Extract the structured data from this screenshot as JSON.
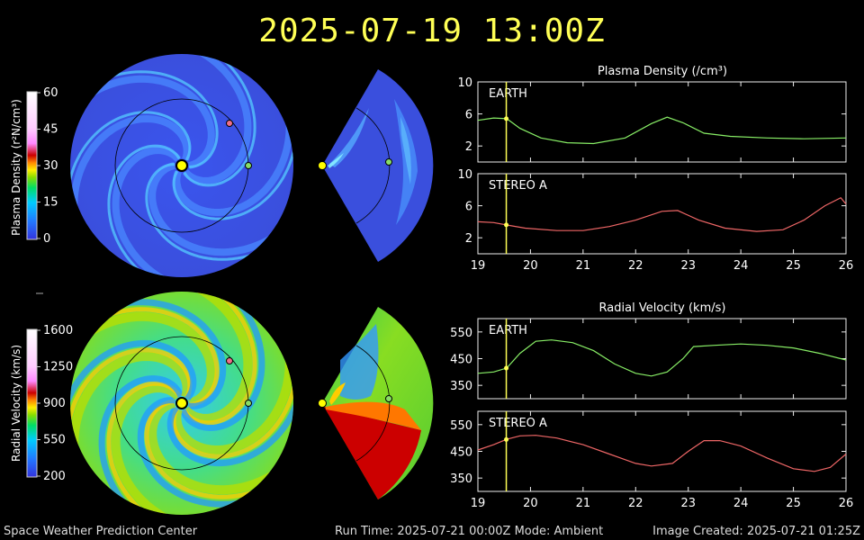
{
  "header": {
    "timestamp": "2025-07-19 13:00Z"
  },
  "footer": {
    "org": "Space Weather Prediction Center",
    "run_time": "Run Time: 2025-07-21 00:00Z  Mode: Ambient",
    "image_created": "Image Created: 2025-07-21 01:25Z"
  },
  "colors": {
    "title": "#ffff55",
    "earth_series": "#88ee66",
    "stereo_series": "#ee6666",
    "marker_line": "#ffff55",
    "earth_marker": "#88dd66",
    "stereo_marker": "#ee6f8a",
    "sun": "#ffff00"
  },
  "colorbars": {
    "density": {
      "label": "Plasma Density (r²N/cm³)",
      "ticks": [
        "60",
        "45",
        "30",
        "15",
        "0"
      ]
    },
    "velocity": {
      "label": "Radial Velocity (km/s)",
      "ticks": [
        "1600",
        "1250",
        "900",
        "550",
        "200"
      ]
    }
  },
  "chart_data": [
    {
      "type": "line",
      "title": "Plasma Density (/cm³)",
      "subpanels": [
        {
          "name": "EARTH",
          "ylim": [
            0,
            10
          ],
          "yticks": [
            2,
            6,
            10
          ],
          "series": [
            {
              "name": "EARTH",
              "x": [
                19,
                19.3,
                19.55,
                19.8,
                20.2,
                20.7,
                21.2,
                21.8,
                22.3,
                22.6,
                22.9,
                23.3,
                23.8,
                24.5,
                25.2,
                26
              ],
              "y": [
                5.2,
                5.5,
                5.4,
                4.2,
                3.0,
                2.4,
                2.3,
                3.0,
                4.8,
                5.6,
                4.9,
                3.6,
                3.2,
                3.0,
                2.9,
                3.0
              ]
            }
          ]
        },
        {
          "name": "STEREO A",
          "ylim": [
            0,
            10
          ],
          "yticks": [
            2,
            6,
            10
          ],
          "series": [
            {
              "name": "STEREO A",
              "x": [
                19,
                19.3,
                19.55,
                19.9,
                20.5,
                21,
                21.5,
                22,
                22.5,
                22.8,
                23.2,
                23.7,
                24.3,
                24.8,
                25.2,
                25.6,
                25.9,
                26
              ],
              "y": [
                4.0,
                3.9,
                3.6,
                3.2,
                2.9,
                2.9,
                3.4,
                4.2,
                5.3,
                5.4,
                4.2,
                3.2,
                2.8,
                3.0,
                4.2,
                6.0,
                7.0,
                6.2
              ]
            }
          ]
        }
      ],
      "xlim": [
        19,
        26
      ],
      "xticks": [
        19,
        20,
        21,
        22,
        23,
        24,
        25,
        26
      ],
      "marker_x": 19.54
    },
    {
      "type": "line",
      "title": "Radial Velocity (km/s)",
      "subpanels": [
        {
          "name": "EARTH",
          "ylim": [
            300,
            600
          ],
          "yticks": [
            350,
            450,
            550
          ],
          "series": [
            {
              "name": "EARTH",
              "x": [
                19,
                19.3,
                19.55,
                19.8,
                20.1,
                20.4,
                20.8,
                21.2,
                21.6,
                22,
                22.3,
                22.6,
                22.9,
                23.1,
                23.5,
                24,
                24.5,
                25,
                25.5,
                26
              ],
              "y": [
                395,
                400,
                415,
                470,
                515,
                520,
                510,
                480,
                430,
                395,
                385,
                400,
                450,
                495,
                500,
                505,
                500,
                490,
                470,
                445
              ]
            }
          ]
        },
        {
          "name": "STEREO A",
          "ylim": [
            300,
            600
          ],
          "yticks": [
            350,
            450,
            550
          ],
          "series": [
            {
              "name": "STEREO A",
              "x": [
                19,
                19.3,
                19.55,
                19.8,
                20.1,
                20.5,
                21,
                21.5,
                22,
                22.3,
                22.7,
                23,
                23.3,
                23.6,
                24,
                24.5,
                25,
                25.4,
                25.7,
                26
              ],
              "y": [
                455,
                475,
                495,
                508,
                510,
                500,
                475,
                440,
                405,
                395,
                405,
                450,
                490,
                490,
                470,
                425,
                385,
                375,
                390,
                440
              ]
            }
          ]
        }
      ],
      "xlim": [
        19,
        26
      ],
      "xticks": [
        19,
        20,
        21,
        22,
        23,
        24,
        25,
        26
      ],
      "marker_x": 19.54
    }
  ]
}
